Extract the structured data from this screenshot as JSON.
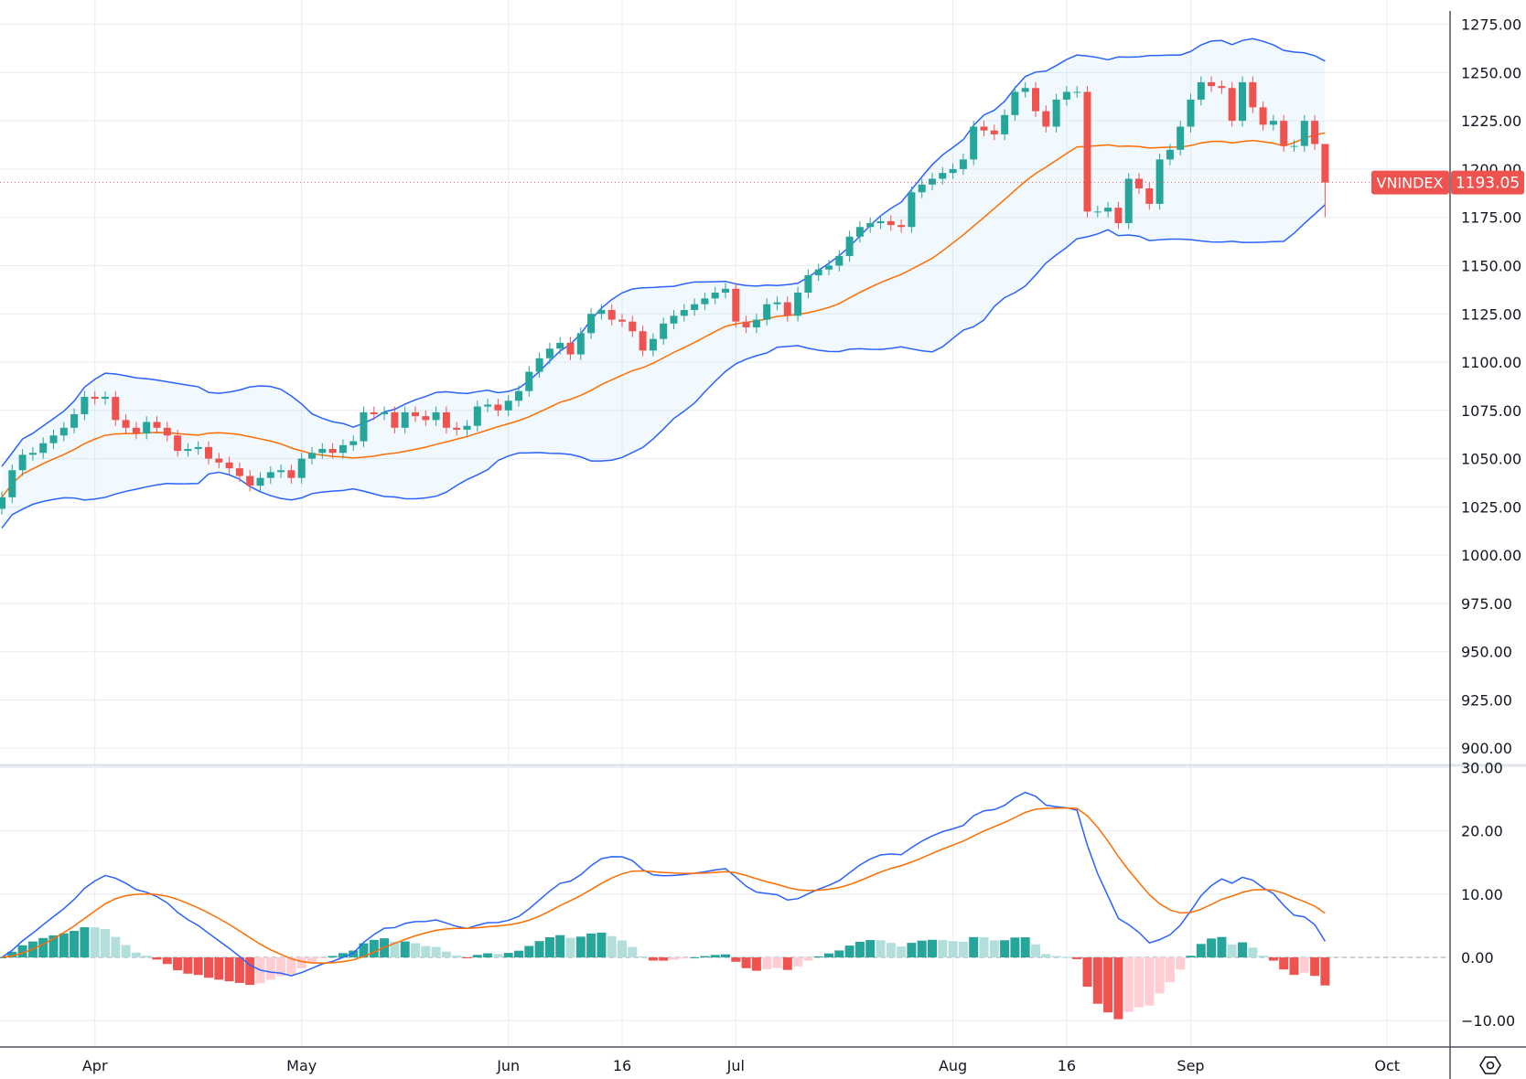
{
  "chart_data": {
    "type": "candlestick",
    "symbol": "VNINDEX",
    "last_price": "1193.05",
    "last_ohlc": {
      "open": 1213,
      "high": 1213,
      "low": 1175,
      "close": 1193.05
    },
    "closes": [
      1030,
      1044,
      1052,
      1053,
      1058,
      1062,
      1066,
      1073,
      1082,
      1081,
      1082,
      1070,
      1066,
      1063,
      1069,
      1066,
      1062,
      1054,
      1055,
      1056,
      1050,
      1048,
      1045,
      1041,
      1036,
      1040,
      1043,
      1044,
      1040,
      1050,
      1053,
      1055,
      1053,
      1057,
      1059,
      1074,
      1073,
      1074,
      1066,
      1074,
      1072,
      1070,
      1074,
      1066,
      1065,
      1067,
      1077,
      1078,
      1075,
      1080,
      1085,
      1095,
      1102,
      1107,
      1110,
      1104,
      1115,
      1125,
      1127,
      1122,
      1121,
      1116,
      1106,
      1112,
      1120,
      1124,
      1127,
      1130,
      1133,
      1136,
      1138,
      1121,
      1118,
      1122,
      1130,
      1131,
      1124,
      1136,
      1145,
      1148,
      1150,
      1155,
      1165,
      1170,
      1172,
      1173,
      1171,
      1170,
      1188,
      1192,
      1195,
      1198,
      1200,
      1205,
      1222,
      1220,
      1218,
      1228,
      1240,
      1242,
      1230,
      1222,
      1236,
      1240,
      1240,
      1178,
      1178,
      1180,
      1172,
      1195,
      1190,
      1182,
      1205,
      1210,
      1222,
      1236,
      1245,
      1243,
      1242,
      1225,
      1245,
      1232,
      1223,
      1225,
      1212,
      1212,
      1225,
      1213,
      1193.05
    ],
    "price_axis": {
      "ylim": [
        890,
        1280
      ],
      "ticks": [
        "1275.00",
        "1250.00",
        "1225.00",
        "1200.00",
        "1175.00",
        "1150.00",
        "1125.00",
        "1100.00",
        "1075.00",
        "1050.00",
        "1025.00",
        "1000.00",
        "975.00",
        "950.00",
        "925.00",
        "900.00"
      ]
    },
    "indicators": {
      "bollinger": {
        "period": 20,
        "stddev": 2,
        "band_color": "#2962ff",
        "basis_color": "#ff6d00"
      },
      "macd": {
        "fast": 12,
        "slow": 26,
        "signal": 9,
        "macd_color": "#2962ff",
        "signal_color": "#ff6d00",
        "ylim": [
          -14,
          30
        ],
        "ticks": [
          "30.00",
          "20.00",
          "10.00",
          "0.00",
          "-10.00"
        ]
      }
    },
    "x_ticks": [
      {
        "label": "Apr",
        "bar": 9
      },
      {
        "label": "May",
        "bar": 29
      },
      {
        "label": "Jun",
        "bar": 49
      },
      {
        "label": "16",
        "bar": 60
      },
      {
        "label": "Jul",
        "bar": 71
      },
      {
        "label": "Aug",
        "bar": 92
      },
      {
        "label": "16",
        "bar": 103
      },
      {
        "label": "Sep",
        "bar": 115
      },
      {
        "label": "Oct",
        "bar": 134
      }
    ],
    "colors": {
      "up": "#26a69a",
      "down": "#ef5350",
      "up_light": "#b2dfdb",
      "down_light": "#ffcdd2",
      "grid": "#e9edf3",
      "price_label": "#ef5350"
    }
  },
  "settings_icon": "settings-hexagon-icon"
}
